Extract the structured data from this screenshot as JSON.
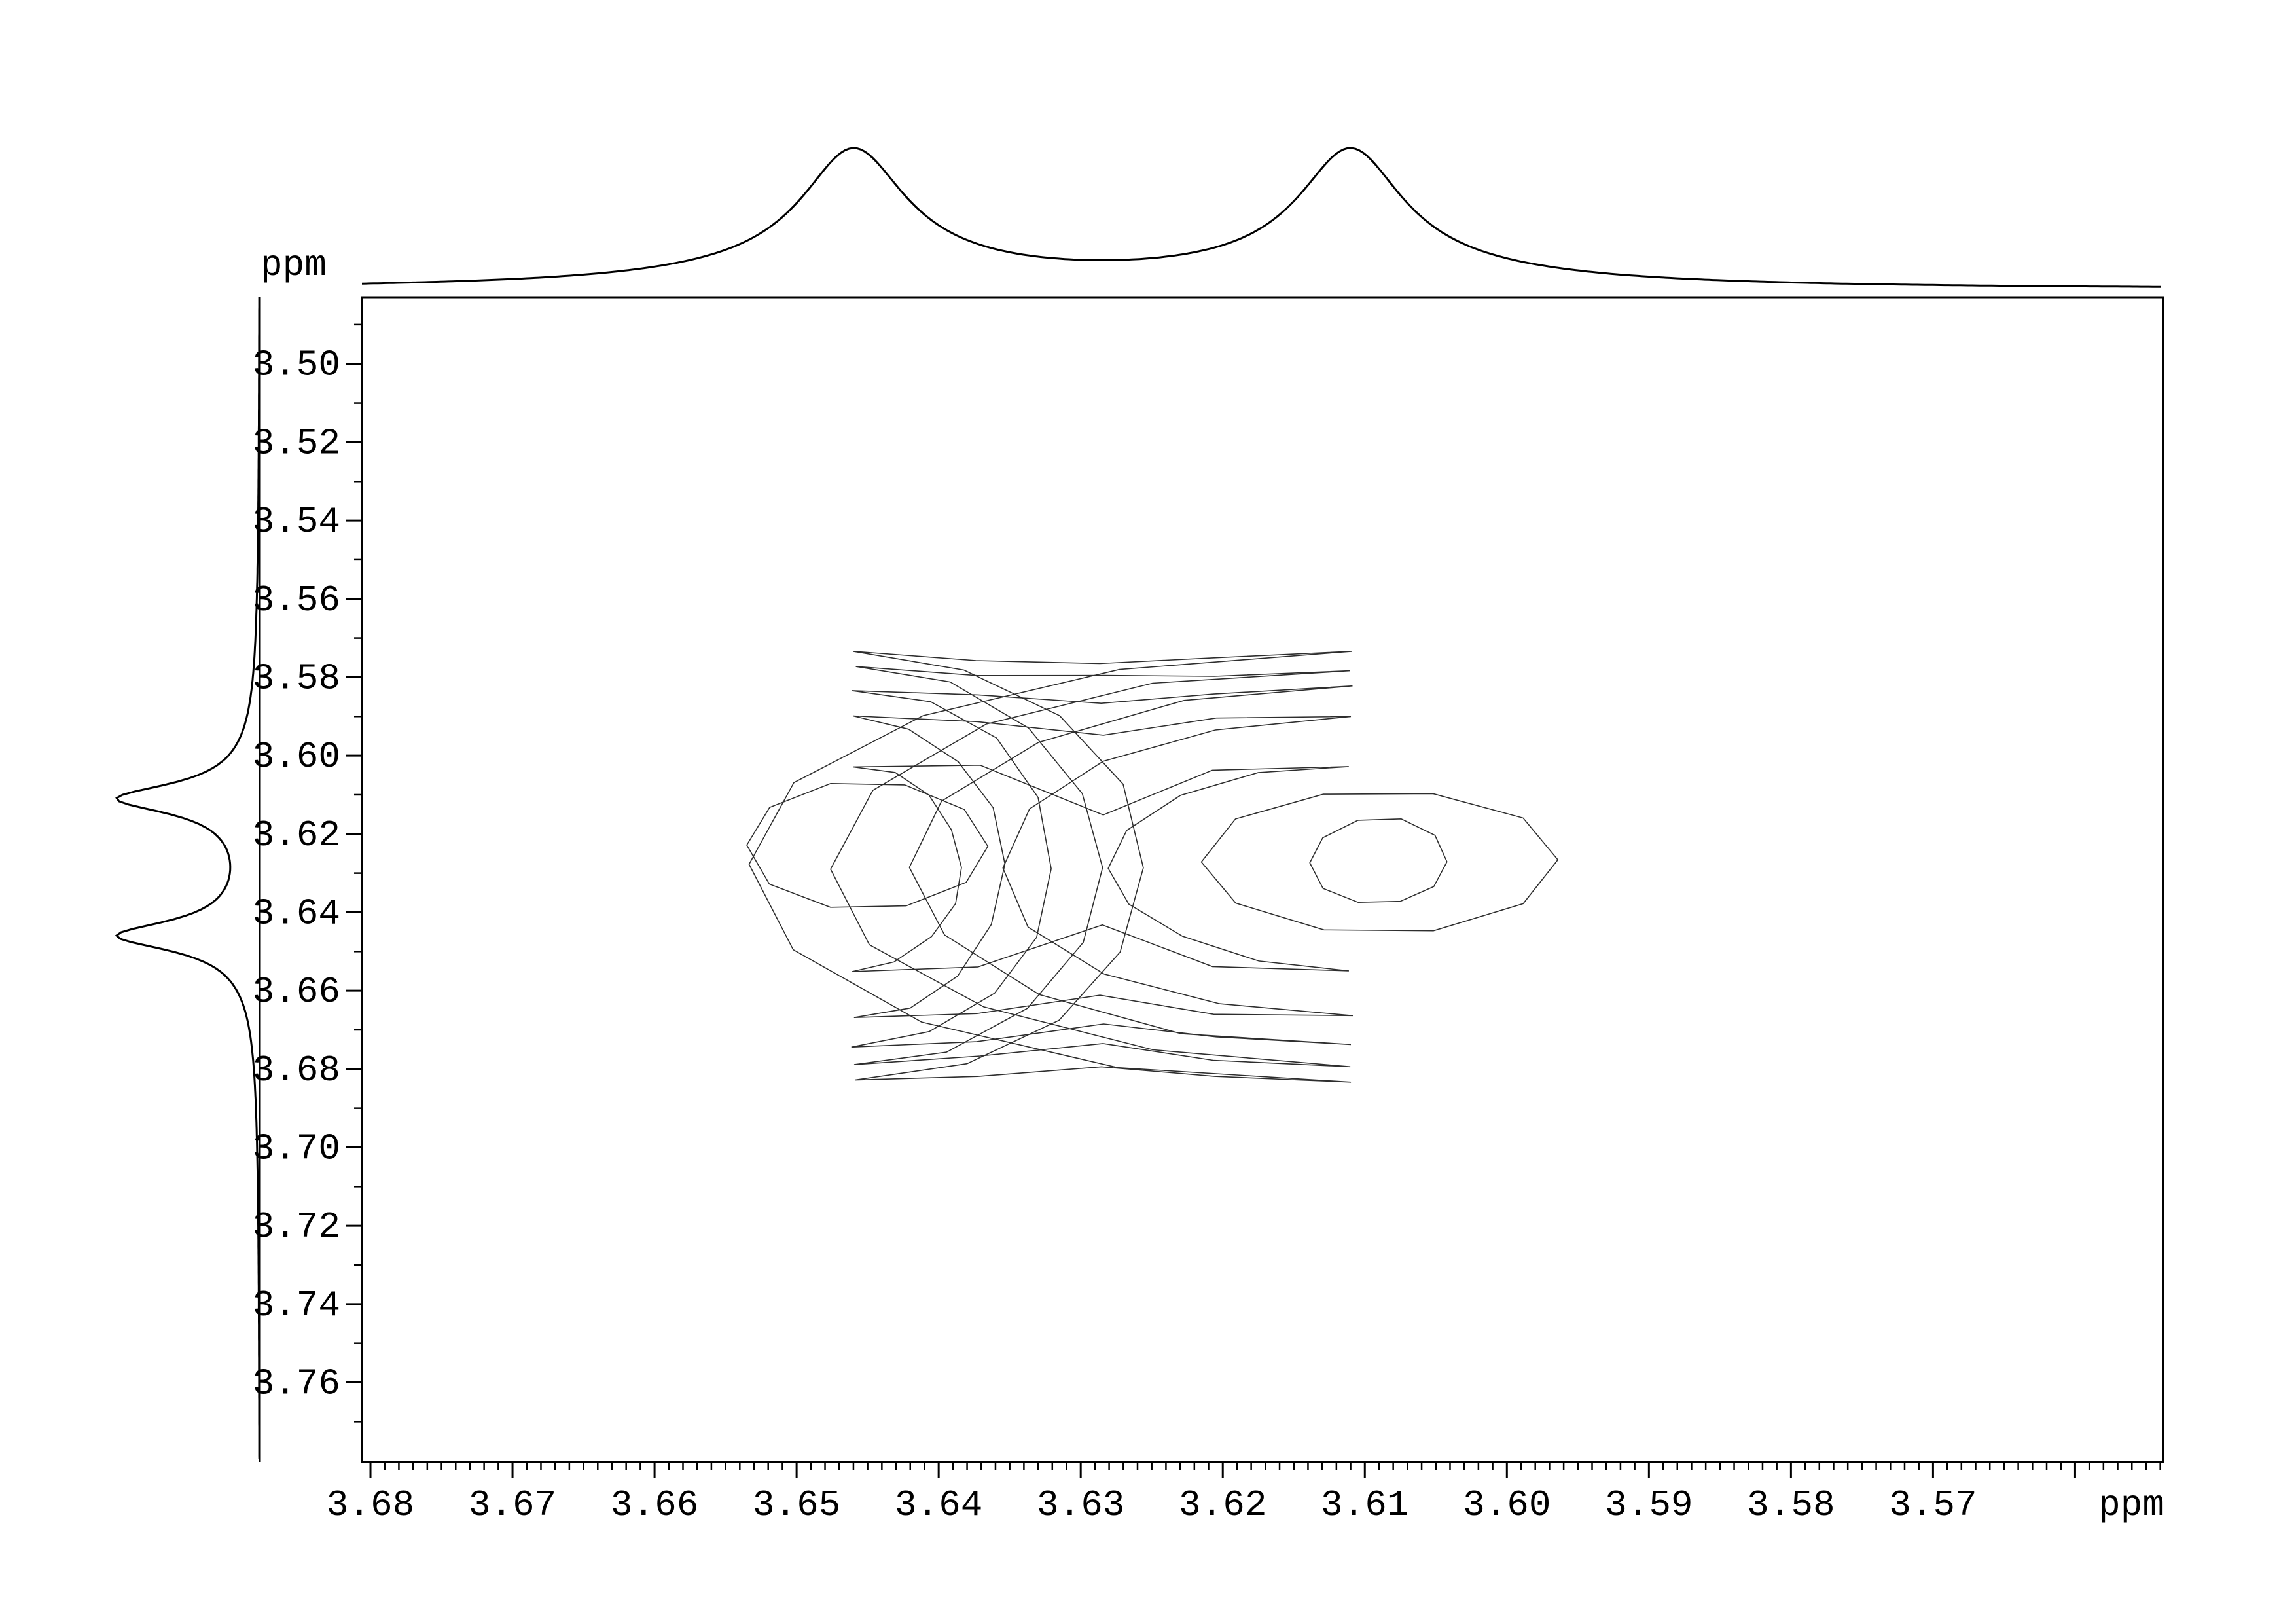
{
  "figure": {
    "background_color": "#ffffff",
    "axis_line_color": "#000000",
    "trace_line_color": "#000000",
    "contour_line_color": "#2e2e2e"
  },
  "axes": {
    "x": {
      "unit_label": "ppm",
      "range_ppm": [
        3.6806,
        3.5538
      ],
      "major_tick_step": 0.01,
      "minor_tick_step": 0.001,
      "major_ticks": [
        3.68,
        3.67,
        3.66,
        3.65,
        3.64,
        3.63,
        3.62,
        3.61,
        3.6,
        3.59,
        3.58,
        3.57,
        3.56
      ],
      "tick_labels": [
        "3.68",
        "3.67",
        "3.66",
        "3.65",
        "3.64",
        "3.63",
        "3.62",
        "3.61",
        "3.60",
        "3.59",
        "3.58",
        "3.57"
      ],
      "tick_label_values": [
        3.68,
        3.67,
        3.66,
        3.65,
        3.64,
        3.63,
        3.62,
        3.61,
        3.6,
        3.59,
        3.58,
        3.57
      ]
    },
    "y": {
      "unit_label": "ppm",
      "range_ppm": [
        3.483,
        3.7803
      ],
      "major_tick_step": 0.02,
      "minor_tick_step": 0.01,
      "major_ticks": [
        3.5,
        3.52,
        3.54,
        3.56,
        3.58,
        3.6,
        3.62,
        3.64,
        3.66,
        3.68,
        3.7,
        3.72,
        3.74,
        3.76
      ],
      "tick_labels": [
        "3.50",
        "3.52",
        "3.54",
        "3.56",
        "3.58",
        "3.60",
        "3.62",
        "3.64",
        "3.66",
        "3.68",
        "3.70",
        "3.72",
        "3.74",
        "3.76"
      ],
      "tick_label_values": [
        3.5,
        3.52,
        3.54,
        3.56,
        3.58,
        3.6,
        3.62,
        3.64,
        3.66,
        3.68,
        3.7,
        3.72,
        3.74,
        3.76
      ],
      "minor_ticks": [
        3.49,
        3.51,
        3.53,
        3.55,
        3.57,
        3.59,
        3.61,
        3.63,
        3.65,
        3.67,
        3.69,
        3.71,
        3.73,
        3.75,
        3.77
      ]
    }
  },
  "chart_data": {
    "type": "contour",
    "xlabel": "ppm",
    "ylabel": "ppm",
    "x_range_ppm": [
      3.6806,
      3.5538
    ],
    "y_range_ppm": [
      3.483,
      3.7803
    ],
    "peaks_f2_ppm": [
      3.646,
      3.611
    ],
    "peaks_f1_ppm": [
      3.611,
      3.646
    ],
    "cross_peak_center": {
      "f2": 3.6285,
      "f1": 3.6285
    },
    "saddle_f2_ppm": 3.6285,
    "n_contour_levels": 7,
    "lobes": [
      {
        "cx": 3.646
      },
      {
        "cx": 3.611
      }
    ],
    "merged_levels": [
      {
        "rxL": 0.0205,
        "rxR": 0.0425,
        "h": 0.055,
        "pinch_top_dy": 0.0525,
        "pinch_bot_dy": 0.0505
      },
      {
        "rxL": 0.0175,
        "rxR": 0.0365,
        "h": 0.0505,
        "pinch_top_dy": 0.0488,
        "pinch_bot_dy": 0.0455
      },
      {
        "rxL": 0.014,
        "rxR": 0.031,
        "h": 0.0455,
        "pinch_top_dy": 0.0423,
        "pinch_bot_dy": 0.0404
      },
      {
        "rxL": 0.0105,
        "rxR": 0.0245,
        "h": 0.0385,
        "pinch_top_dy": 0.0331,
        "pinch_bot_dy": 0.0322
      },
      {
        "rxL": 0.0076,
        "rxR": 0.017,
        "h": 0.026,
        "pinch_top_dy": 0.0131,
        "pinch_bot_dy": 0.0149
      }
    ],
    "rings": [
      {
        "cx": 3.645,
        "cy": 3.623,
        "rx": 0.0085,
        "ry": 0.0165
      },
      {
        "cx": 3.609,
        "cy": 3.627,
        "rx": 0.0125,
        "ry": 0.0185
      },
      {
        "cx": 3.609,
        "cy": 3.627,
        "rx": 0.0048,
        "ry": 0.011
      }
    ],
    "projections": {
      "top": {
        "peaks_ppm": [
          3.646,
          3.611
        ],
        "narrow_hwhm_ppm": 0.0044,
        "broad_hwhm_ppm": 0.0135,
        "narrow_weight": 0.85,
        "broad_weight": 0.15
      },
      "left": {
        "peaks_ppm": [
          3.611,
          3.646
        ],
        "narrow_hwhm_ppm": 0.0044,
        "broad_hwhm_ppm": 0.0135,
        "narrow_weight": 0.85,
        "broad_weight": 0.15
      }
    }
  }
}
